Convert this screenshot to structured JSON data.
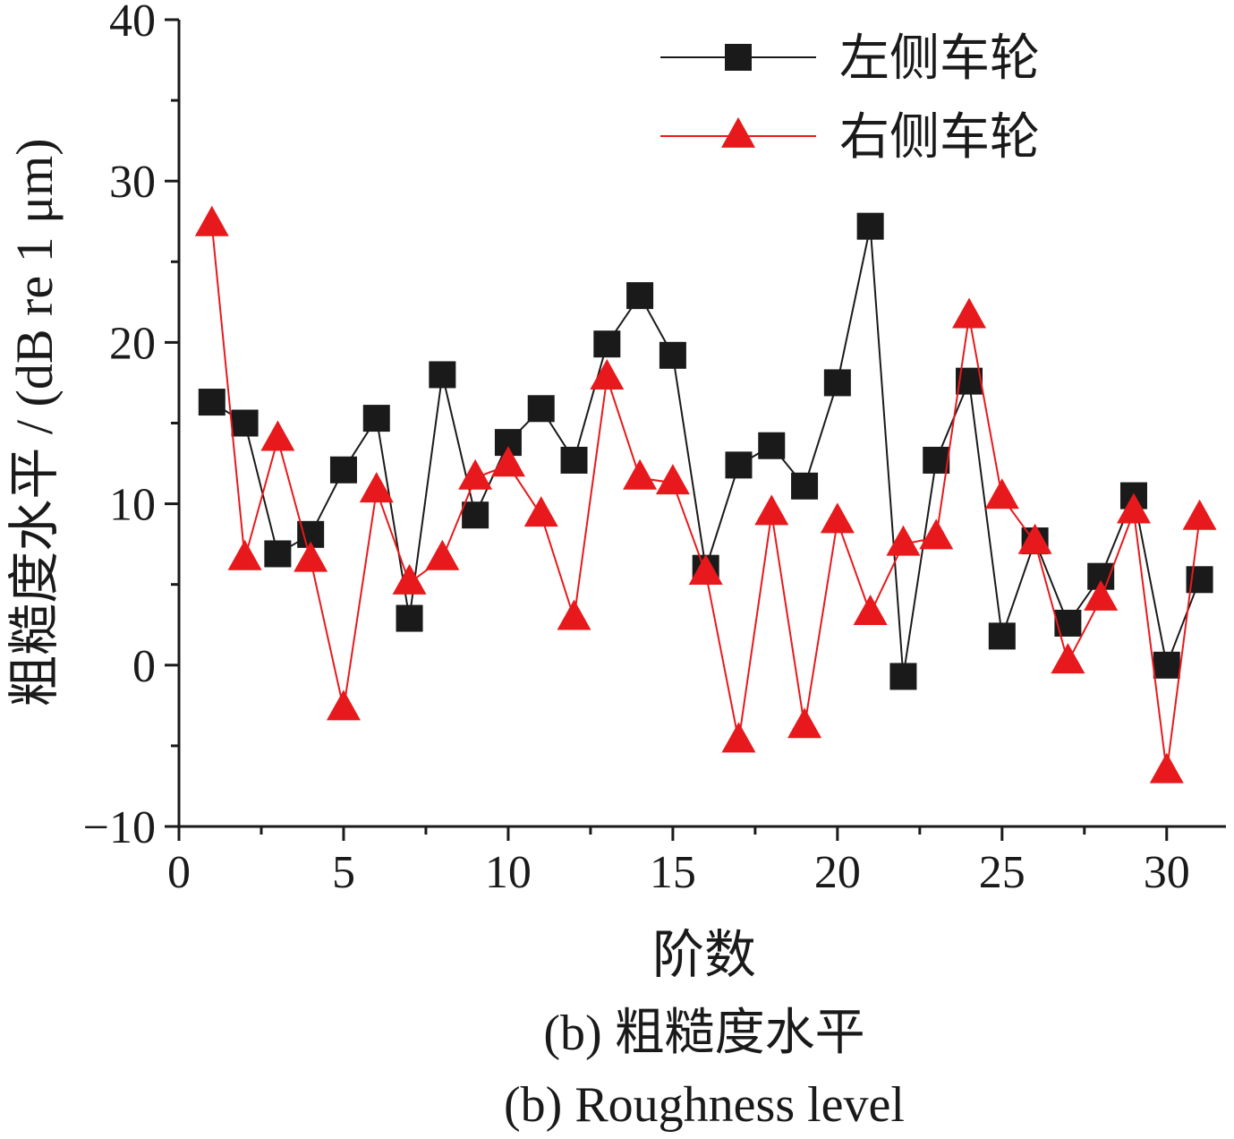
{
  "chart_data": {
    "type": "line",
    "xlabel": "阶数",
    "ylabel": "粗糙度水平 / (dB re 1 μm)",
    "xlim": [
      0,
      31.8
    ],
    "ylim": [
      -10,
      40
    ],
    "xticks": [
      0,
      5,
      10,
      15,
      20,
      25,
      30
    ],
    "yticks": [
      -10,
      0,
      10,
      20,
      30,
      40
    ],
    "xtick_labels": [
      "0",
      "5",
      "10",
      "15",
      "20",
      "25",
      "30"
    ],
    "ytick_labels": [
      "−10",
      "0",
      "10",
      "20",
      "30",
      "40"
    ],
    "grid": false,
    "legend_position": "top-right",
    "x": [
      1,
      2,
      3,
      4,
      5,
      6,
      7,
      8,
      9,
      10,
      11,
      12,
      13,
      14,
      15,
      16,
      17,
      18,
      19,
      20,
      21,
      22,
      23,
      24,
      25,
      26,
      27,
      28,
      29,
      30,
      31
    ],
    "series": [
      {
        "name": "左侧车轮",
        "color": "#1a1a1a",
        "marker": "square",
        "values": [
          16.3,
          15.0,
          6.9,
          8.1,
          12.1,
          15.3,
          2.9,
          18.0,
          9.3,
          13.8,
          15.9,
          12.7,
          19.9,
          22.9,
          19.2,
          6.0,
          12.4,
          13.6,
          11.1,
          17.5,
          27.2,
          -0.7,
          12.7,
          17.6,
          1.8,
          7.7,
          2.6,
          5.5,
          10.5,
          0.0,
          5.3
        ]
      },
      {
        "name": "右侧车轮",
        "color": "#e8191c",
        "marker": "triangle",
        "values": [
          27.3,
          6.6,
          14.0,
          6.5,
          -2.7,
          10.8,
          5.1,
          6.6,
          11.6,
          12.4,
          9.3,
          2.9,
          17.8,
          11.6,
          11.3,
          5.7,
          -4.7,
          9.4,
          -3.8,
          8.9,
          3.2,
          7.5,
          7.9,
          21.6,
          10.4,
          7.6,
          0.2,
          4.1,
          9.5,
          -6.6,
          9.1
        ]
      }
    ]
  },
  "caption": {
    "line1": "(b) 粗糙度水平",
    "line2": "(b) Roughness level"
  }
}
